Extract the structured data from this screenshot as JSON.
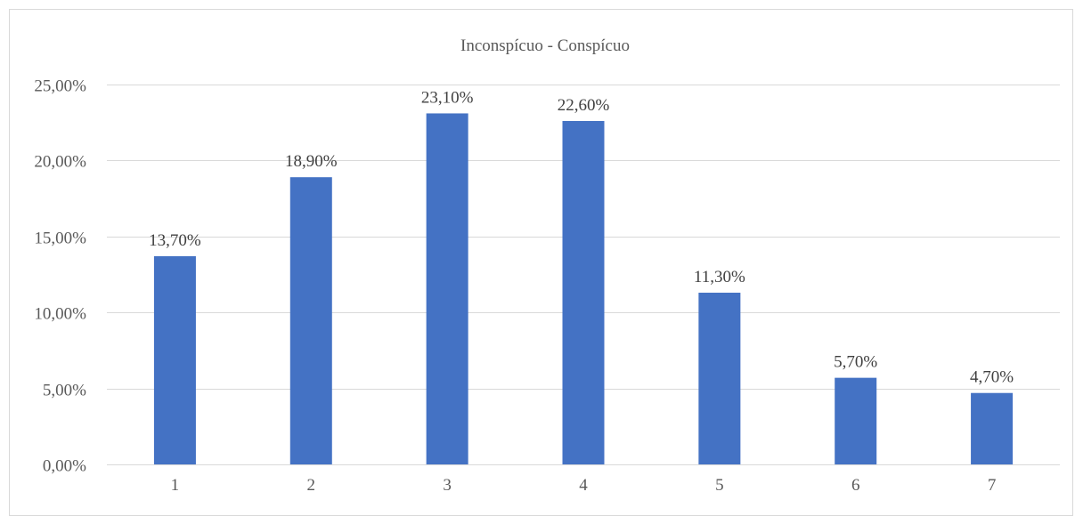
{
  "chart_data": {
    "type": "bar",
    "title": "Inconspícuo - Conspícuo",
    "categories": [
      "1",
      "2",
      "3",
      "4",
      "5",
      "6",
      "7"
    ],
    "values": [
      13.7,
      18.9,
      23.1,
      22.6,
      11.3,
      5.7,
      4.7
    ],
    "data_labels": [
      "13,70%",
      "18,90%",
      "23,10%",
      "22,60%",
      "11,30%",
      "5,70%",
      "4,70%"
    ],
    "y_ticks": [
      0,
      5,
      10,
      15,
      20,
      25
    ],
    "y_tick_labels": [
      "0,00%",
      "5,00%",
      "10,00%",
      "15,00%",
      "20,00%",
      "25,00%"
    ],
    "ylim": [
      0,
      25
    ],
    "grid": true,
    "legend": "none",
    "bar_color": "#4472c4",
    "grid_color": "#d9d9d9"
  }
}
